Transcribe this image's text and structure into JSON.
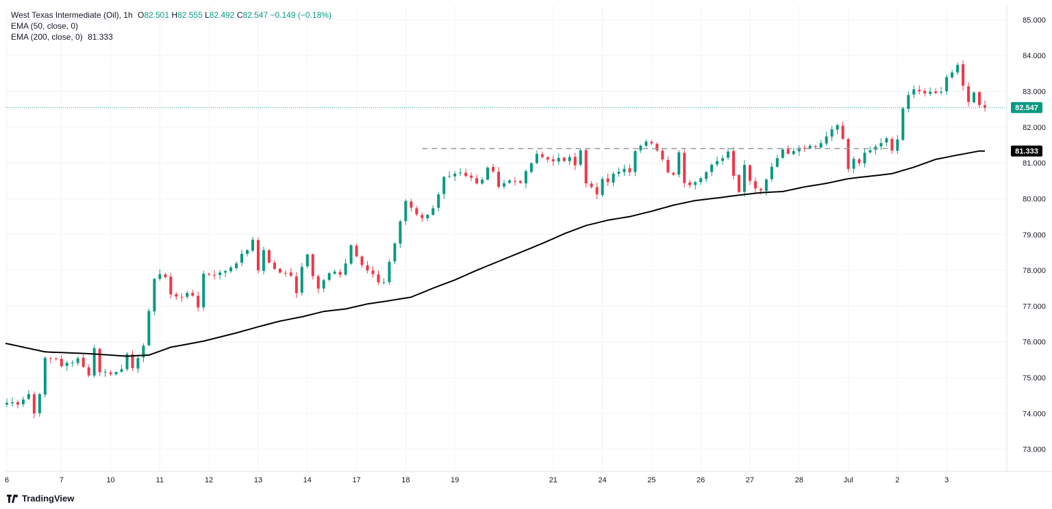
{
  "legend": {
    "symbol": "West Texas Intermediate (Oil), 1h",
    "o_label": "O",
    "o": "82.501",
    "h_label": "H",
    "h": "82.555",
    "l_label": "L",
    "l": "82.492",
    "c_label": "C",
    "c": "82.547",
    "change": "−0.149 (−0.18%)",
    "ema50": "EMA (50, close, 0)",
    "ema200": "EMA (200, close, 0)",
    "ema200_value": "81.333"
  },
  "brand": "TradingView",
  "colors": {
    "up": "#089981",
    "down": "#f23645",
    "ema": "#000000",
    "grid": "#f0f3fa",
    "resistance": "#9598a1",
    "last_price": "#089981"
  },
  "chart_data": {
    "type": "candlestick",
    "title": "West Texas Intermediate (Oil), 1h",
    "ylim": [
      72.4,
      85.4
    ],
    "y_ticks": [
      "73.000",
      "74.000",
      "75.000",
      "76.000",
      "77.000",
      "78.000",
      "79.000",
      "80.000",
      "81.000",
      "82.000",
      "83.000",
      "84.000",
      "85.000"
    ],
    "x_ticks": [
      "6",
      "7",
      "10",
      "11",
      "12",
      "13",
      "14",
      "17",
      "18",
      "19",
      "21",
      "24",
      "25",
      "26",
      "27",
      "28",
      "Jul",
      "2",
      "3"
    ],
    "last_price": {
      "value": 82.547,
      "label": "82.547"
    },
    "ema_label": {
      "value": 81.333,
      "label": "81.333"
    },
    "resistance_level": 81.4,
    "grid": true,
    "close_path": [
      [
        0,
        74.3
      ],
      [
        2,
        74.3
      ],
      [
        4,
        74.55
      ],
      [
        5,
        74.0
      ],
      [
        6,
        74.6
      ],
      [
        7,
        75.5
      ],
      [
        9,
        75.55
      ],
      [
        10,
        75.35
      ],
      [
        12,
        75.4
      ],
      [
        13,
        75.6
      ],
      [
        14,
        75.3
      ],
      [
        15,
        75.1
      ],
      [
        16,
        75.8
      ],
      [
        17,
        75.2
      ],
      [
        19,
        75.1
      ],
      [
        21,
        75.3
      ],
      [
        22,
        75.6
      ],
      [
        23,
        75.2
      ],
      [
        24,
        75.6
      ],
      [
        25,
        75.9
      ],
      [
        26,
        76.8
      ],
      [
        27,
        77.8
      ],
      [
        28,
        77.9
      ],
      [
        29,
        77.8
      ],
      [
        30,
        77.3
      ],
      [
        32,
        77.3
      ],
      [
        34,
        77.3
      ],
      [
        35,
        77.0
      ],
      [
        36,
        77.9
      ],
      [
        37,
        77.9
      ],
      [
        39,
        77.9
      ],
      [
        41,
        78.1
      ],
      [
        43,
        78.4
      ],
      [
        44,
        78.6
      ],
      [
        45,
        78.8
      ],
      [
        46,
        78.0
      ],
      [
        47,
        78.6
      ],
      [
        48,
        78.2
      ],
      [
        50,
        77.9
      ],
      [
        52,
        77.9
      ],
      [
        53,
        77.4
      ],
      [
        54,
        78.1
      ],
      [
        55,
        78.5
      ],
      [
        56,
        77.9
      ],
      [
        57,
        77.5
      ],
      [
        59,
        77.9
      ],
      [
        61,
        77.9
      ],
      [
        62,
        78.2
      ],
      [
        63,
        78.7
      ],
      [
        64,
        78.4
      ],
      [
        65,
        78.1
      ],
      [
        66,
        78.0
      ],
      [
        67,
        77.9
      ],
      [
        68,
        77.7
      ],
      [
        69,
        77.7
      ],
      [
        70,
        78.2
      ],
      [
        71,
        78.8
      ],
      [
        72,
        79.4
      ],
      [
        73,
        79.9
      ],
      [
        74,
        79.7
      ],
      [
        75,
        79.5
      ],
      [
        76,
        79.4
      ],
      [
        77,
        79.5
      ],
      [
        78,
        79.7
      ],
      [
        79,
        80.1
      ],
      [
        80,
        80.6
      ],
      [
        81,
        80.7
      ],
      [
        83,
        80.75
      ],
      [
        85,
        80.6
      ],
      [
        86,
        80.4
      ],
      [
        87,
        80.5
      ],
      [
        88,
        80.9
      ],
      [
        89,
        80.7
      ],
      [
        90,
        80.4
      ],
      [
        92,
        80.5
      ],
      [
        94,
        80.5
      ],
      [
        95,
        80.7
      ],
      [
        96,
        81.0
      ],
      [
        97,
        81.2
      ],
      [
        99,
        81.1
      ],
      [
        101,
        81.1
      ],
      [
        102,
        81.0
      ],
      [
        103,
        81.2
      ],
      [
        104,
        81.0
      ],
      [
        105,
        81.4
      ],
      [
        106,
        80.4
      ],
      [
        107,
        80.3
      ],
      [
        108,
        80.1
      ],
      [
        109,
        80.5
      ],
      [
        110,
        80.5
      ],
      [
        112,
        80.8
      ],
      [
        113,
        80.9
      ],
      [
        114,
        80.8
      ],
      [
        115,
        81.4
      ],
      [
        117,
        81.55
      ],
      [
        118,
        81.5
      ],
      [
        119,
        81.4
      ],
      [
        120,
        81.1
      ],
      [
        121,
        80.8
      ],
      [
        122,
        80.7
      ],
      [
        123,
        81.3
      ],
      [
        124,
        80.5
      ],
      [
        125,
        80.4
      ],
      [
        127,
        80.6
      ],
      [
        128,
        80.7
      ],
      [
        129,
        81.0
      ],
      [
        130,
        81.1
      ],
      [
        131,
        81.2
      ],
      [
        132,
        81.3
      ],
      [
        133,
        80.7
      ],
      [
        134,
        80.2
      ],
      [
        135,
        81.0
      ],
      [
        136,
        80.5
      ],
      [
        137,
        80.3
      ],
      [
        138,
        80.3
      ],
      [
        139,
        80.5
      ],
      [
        140,
        80.9
      ],
      [
        141,
        81.1
      ],
      [
        142,
        81.4
      ],
      [
        143,
        81.2
      ],
      [
        145,
        81.4
      ],
      [
        147,
        81.5
      ],
      [
        149,
        81.5
      ],
      [
        150,
        81.8
      ],
      [
        151,
        82.0
      ],
      [
        152,
        82.1
      ],
      [
        153,
        81.7
      ],
      [
        154,
        80.9
      ],
      [
        155,
        81.1
      ],
      [
        156,
        81.0
      ],
      [
        157,
        81.3
      ],
      [
        159,
        81.4
      ],
      [
        161,
        81.7
      ],
      [
        162,
        81.4
      ],
      [
        163,
        81.6
      ],
      [
        164,
        82.5
      ],
      [
        165,
        82.9
      ],
      [
        166,
        83.0
      ],
      [
        168,
        82.95
      ],
      [
        170,
        82.9
      ],
      [
        171,
        83.0
      ],
      [
        172,
        83.4
      ],
      [
        173,
        83.5
      ],
      [
        174,
        83.7
      ],
      [
        175,
        83.1
      ],
      [
        176,
        82.7
      ],
      [
        177,
        82.9
      ],
      [
        178,
        82.6
      ],
      [
        179,
        82.547
      ]
    ],
    "ema200": [
      [
        0,
        75.95
      ],
      [
        7,
        75.72
      ],
      [
        15,
        75.67
      ],
      [
        22,
        75.6
      ],
      [
        26,
        75.63
      ],
      [
        30,
        75.85
      ],
      [
        36,
        76.02
      ],
      [
        42,
        76.25
      ],
      [
        46,
        76.42
      ],
      [
        50,
        76.58
      ],
      [
        54,
        76.7
      ],
      [
        58,
        76.85
      ],
      [
        62,
        76.92
      ],
      [
        66,
        77.06
      ],
      [
        70,
        77.15
      ],
      [
        74,
        77.25
      ],
      [
        78,
        77.5
      ],
      [
        82,
        77.73
      ],
      [
        86,
        78.0
      ],
      [
        90,
        78.25
      ],
      [
        94,
        78.5
      ],
      [
        98,
        78.75
      ],
      [
        102,
        79.02
      ],
      [
        106,
        79.25
      ],
      [
        110,
        79.4
      ],
      [
        114,
        79.5
      ],
      [
        118,
        79.65
      ],
      [
        122,
        79.82
      ],
      [
        126,
        79.95
      ],
      [
        130,
        80.02
      ],
      [
        134,
        80.1
      ],
      [
        138,
        80.17
      ],
      [
        142,
        80.2
      ],
      [
        146,
        80.33
      ],
      [
        150,
        80.43
      ],
      [
        154,
        80.56
      ],
      [
        158,
        80.63
      ],
      [
        162,
        80.7
      ],
      [
        166,
        80.88
      ],
      [
        170,
        81.1
      ],
      [
        174,
        81.22
      ],
      [
        178,
        81.333
      ]
    ]
  }
}
